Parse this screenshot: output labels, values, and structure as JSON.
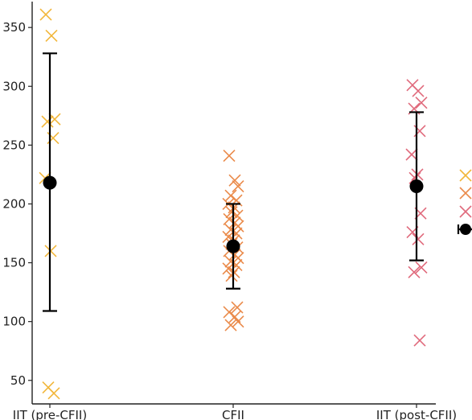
{
  "chart_data": {
    "type": "scatter",
    "title": "",
    "xlabel": "",
    "ylabel": "",
    "ylim": [
      30,
      372
    ],
    "yticks": [
      50,
      100,
      150,
      200,
      250,
      300,
      350
    ],
    "grid": false,
    "categories": [
      "IIT (pre-CFII)",
      "CFII",
      "IIT (post-CFII)"
    ],
    "series": [
      {
        "category": "IIT (pre-CFII)",
        "color": "#f2b63a",
        "points": [
          361,
          343,
          272,
          270,
          256,
          222,
          160,
          44,
          39
        ],
        "mean": 218,
        "err_low": 109,
        "err_high": 328
      },
      {
        "category": "CFII",
        "color": "#ea8a4a",
        "points": [
          241,
          220,
          215,
          207,
          203,
          200,
          197,
          193,
          190,
          187,
          184,
          181,
          178,
          175,
          172,
          169,
          166,
          163,
          160,
          157,
          154,
          151,
          148,
          145,
          142,
          139,
          112,
          108,
          104,
          100,
          97
        ],
        "mean": 164,
        "err_low": 128,
        "err_high": 200
      },
      {
        "category": "IIT (post-CFII)",
        "color": "#e06a7c",
        "points": [
          301,
          296,
          286,
          281,
          262,
          242,
          225,
          222,
          192,
          176,
          170,
          146,
          142,
          84
        ],
        "mean": 215,
        "err_low": 152,
        "err_high": 278
      }
    ],
    "legend": {
      "placement": "right-edge (clipped)",
      "markers": [
        "#f2b63a",
        "#ea8a4a",
        "#e06a7c"
      ],
      "mean_marker": "#000000"
    }
  }
}
